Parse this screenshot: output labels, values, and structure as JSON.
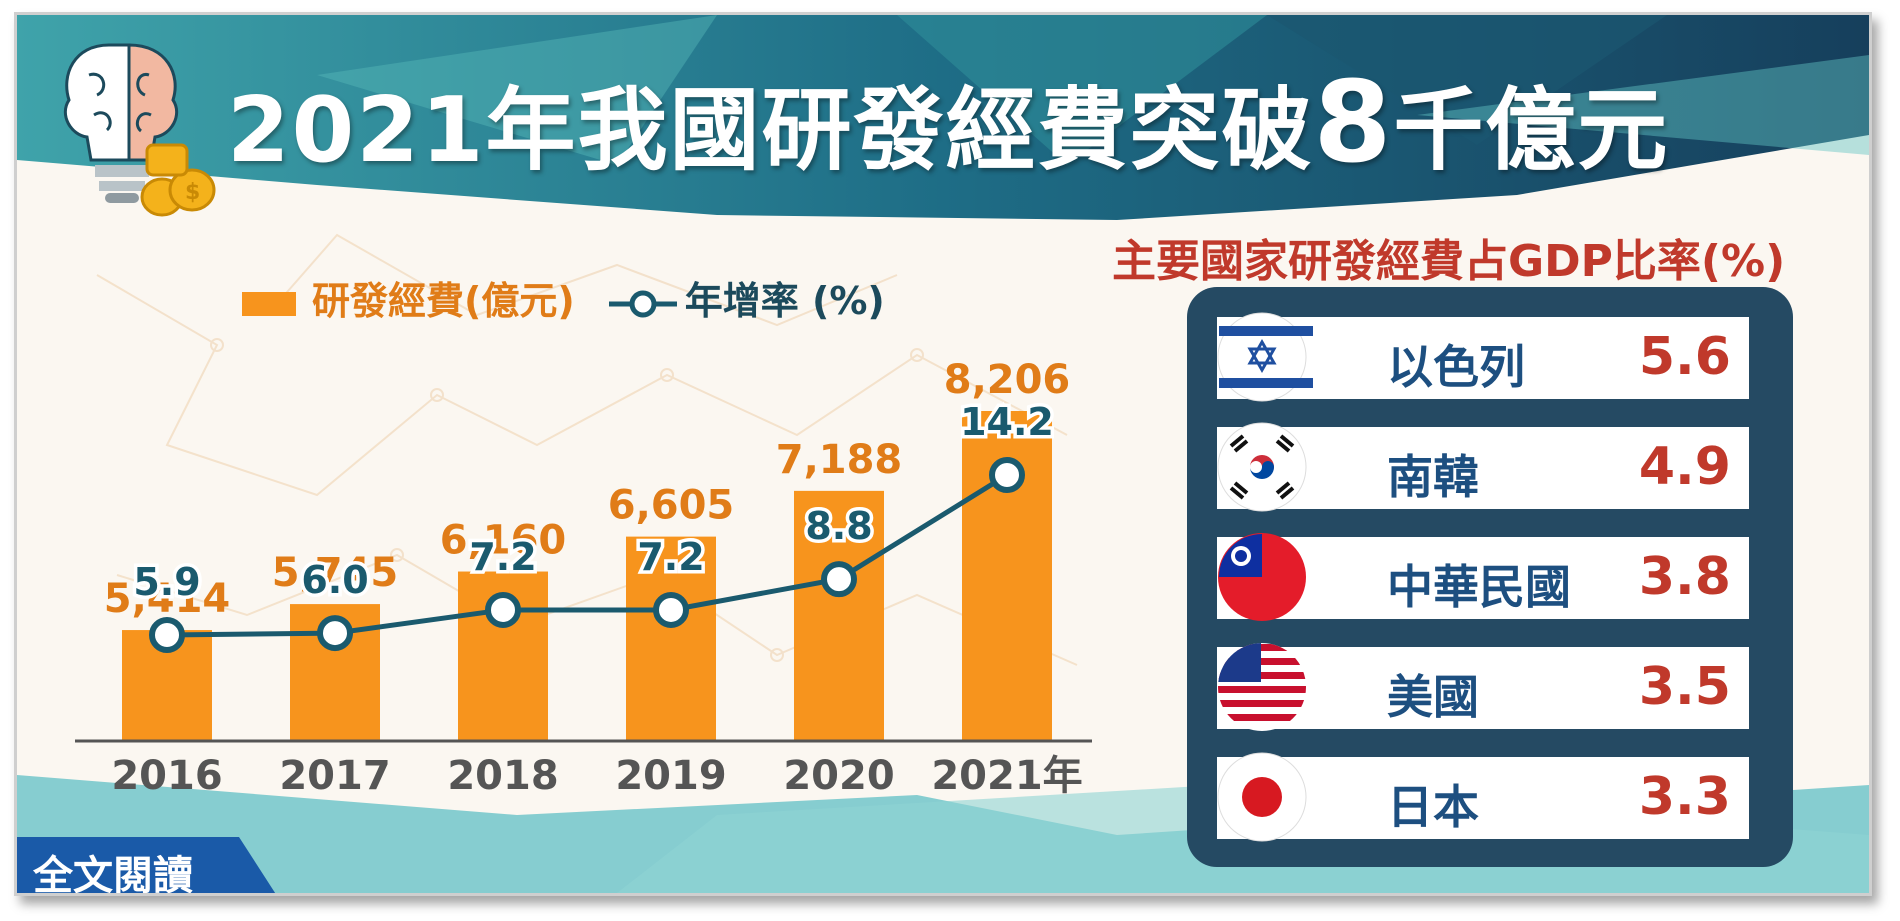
{
  "title": {
    "main": "2021年我國研發經費突破",
    "number": "8",
    "suffix": "千億元"
  },
  "legend": {
    "bar_label": "研發經費(億元)",
    "line_label": "年增率 (%)"
  },
  "chart_data": {
    "type": "bar",
    "categories": [
      "2016",
      "2017",
      "2018",
      "2019",
      "2020",
      "2021年"
    ],
    "series": [
      {
        "name": "研發經費(億元)",
        "type": "bar",
        "values": [
          5414,
          5745,
          6160,
          6605,
          7188,
          8206
        ]
      },
      {
        "name": "年增率 (%)",
        "type": "line",
        "values": [
          5.9,
          6.0,
          7.2,
          7.2,
          8.8,
          14.2
        ]
      }
    ],
    "bar_labels": [
      "5,414",
      "5,745",
      "6,160",
      "6,605",
      "7,188",
      "8,206"
    ],
    "line_labels": [
      "5.9",
      "6.0",
      "7.2",
      "7.2",
      "8.8",
      "14.2"
    ],
    "colors": {
      "bar": "#f7941d",
      "line": "#1a5a6e",
      "bar_label": "#e07c18"
    }
  },
  "panel": {
    "title": "主要國家研發經費占GDP比率(%)",
    "rows": [
      {
        "country": "以色列",
        "value": "5.6",
        "flag": "israel-flag"
      },
      {
        "country": "南韓",
        "value": "4.9",
        "flag": "south-korea-flag"
      },
      {
        "country": "中華民國",
        "value": "3.8",
        "flag": "taiwan-flag"
      },
      {
        "country": "美國",
        "value": "3.5",
        "flag": "usa-flag"
      },
      {
        "country": "日本",
        "value": "3.3",
        "flag": "japan-flag"
      }
    ]
  },
  "read_more": {
    "label": "全文閱讀"
  },
  "icons": [
    "brain-lightbulb-icon",
    "coins-icon"
  ]
}
